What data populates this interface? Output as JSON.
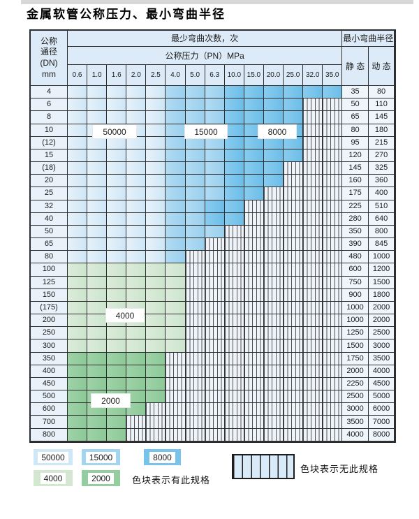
{
  "title": "金属软管公称压力、最小弯曲半径",
  "table": {
    "corner_lines": [
      "公称",
      "通径",
      "(DN)",
      "mm"
    ],
    "bend_cycles_header": "最少弯曲次数，次",
    "pressure_header": "公称压力（PN）MPa",
    "radius_header": "最小弯曲半径",
    "static_label": "静 态",
    "dynamic_label": "动 态",
    "pressures": [
      "0.6",
      "1.0",
      "1.6",
      "2.0",
      "2.5",
      "4.0",
      "5.0",
      "6.3",
      "10.0",
      "15.0",
      "20.0",
      "25.0",
      "32.0",
      "35.0"
    ],
    "rows": [
      {
        "dn": "4",
        "static": "35",
        "dynamic": "80",
        "cells": [
          "b1",
          "b1",
          "b1",
          "b1",
          "b1",
          "b2",
          "b2",
          "b2",
          "b3",
          "b3",
          "b3",
          "b3",
          "b3",
          "b3"
        ]
      },
      {
        "dn": "6",
        "static": "50",
        "dynamic": "110",
        "cells": [
          "b1",
          "b1",
          "b1",
          "b1",
          "b1",
          "b2",
          "b2",
          "b2",
          "b3",
          "b3",
          "b3",
          "b3",
          "x",
          "x"
        ]
      },
      {
        "dn": "8",
        "static": "65",
        "dynamic": "145",
        "cells": [
          "b1",
          "b1",
          "b1",
          "b1",
          "b1",
          "b2",
          "b2",
          "b2",
          "b3",
          "b3",
          "b3",
          "b3",
          "x",
          "x"
        ]
      },
      {
        "dn": "10",
        "static": "80",
        "dynamic": "180",
        "cells": [
          "b1",
          "b1",
          "b1",
          "b1",
          "b1",
          "b2",
          "b2",
          "b2",
          "b3",
          "b3",
          "b3",
          "b3",
          "x",
          "x"
        ]
      },
      {
        "dn": "(12)",
        "static": "95",
        "dynamic": "215",
        "cells": [
          "b1",
          "b1",
          "b1",
          "b1",
          "b1",
          "b2",
          "b2",
          "b2",
          "b3",
          "b3",
          "b3",
          "b3",
          "x",
          "x"
        ]
      },
      {
        "dn": "15",
        "static": "120",
        "dynamic": "270",
        "cells": [
          "b1",
          "b1",
          "b1",
          "b1",
          "b1",
          "b2",
          "b2",
          "b2",
          "b3",
          "b3",
          "b3",
          "b3",
          "x",
          "x"
        ]
      },
      {
        "dn": "(18)",
        "static": "145",
        "dynamic": "325",
        "cells": [
          "b1",
          "b1",
          "b1",
          "b1",
          "b1",
          "b2",
          "b2",
          "b2",
          "b3",
          "b3",
          "b3",
          "x",
          "x",
          "x"
        ]
      },
      {
        "dn": "20",
        "static": "160",
        "dynamic": "360",
        "cells": [
          "b1",
          "b1",
          "b1",
          "b1",
          "b1",
          "b2",
          "b2",
          "b2",
          "b3",
          "b3",
          "b3",
          "x",
          "x",
          "x"
        ]
      },
      {
        "dn": "25",
        "static": "175",
        "dynamic": "400",
        "cells": [
          "b1",
          "b1",
          "b1",
          "b1",
          "b1",
          "b2",
          "b2",
          "b2",
          "b3",
          "b3",
          "x",
          "x",
          "x",
          "x"
        ]
      },
      {
        "dn": "32",
        "static": "225",
        "dynamic": "510",
        "cells": [
          "b1",
          "b1",
          "b1",
          "b1",
          "b1",
          "b2",
          "b2",
          "b3",
          "b3",
          "x",
          "x",
          "x",
          "x",
          "x"
        ]
      },
      {
        "dn": "40",
        "static": "280",
        "dynamic": "640",
        "cells": [
          "b1",
          "b1",
          "b1",
          "b1",
          "b1",
          "b2",
          "b2",
          "b3",
          "b3",
          "x",
          "x",
          "x",
          "x",
          "x"
        ]
      },
      {
        "dn": "50",
        "static": "350",
        "dynamic": "800",
        "cells": [
          "b1",
          "b1",
          "b1",
          "b1",
          "b1",
          "b2",
          "b2",
          "b2",
          "x",
          "x",
          "x",
          "x",
          "x",
          "x"
        ]
      },
      {
        "dn": "65",
        "static": "390",
        "dynamic": "845",
        "cells": [
          "b1",
          "b1",
          "b1",
          "b1",
          "b1",
          "b2",
          "b2",
          "x",
          "x",
          "x",
          "x",
          "x",
          "x",
          "x"
        ]
      },
      {
        "dn": "80",
        "static": "480",
        "dynamic": "1000",
        "cells": [
          "b1",
          "b1",
          "b1",
          "b1",
          "b1",
          "b2",
          "x",
          "x",
          "x",
          "x",
          "x",
          "x",
          "x",
          "x"
        ]
      },
      {
        "dn": "100",
        "static": "600",
        "dynamic": "1200",
        "cells": [
          "g1",
          "g1",
          "g1",
          "g1",
          "g1",
          "g1",
          "x",
          "x",
          "x",
          "x",
          "x",
          "x",
          "x",
          "x"
        ]
      },
      {
        "dn": "125",
        "static": "750",
        "dynamic": "1500",
        "cells": [
          "g1",
          "g1",
          "g1",
          "g1",
          "g1",
          "g1",
          "x",
          "x",
          "x",
          "x",
          "x",
          "x",
          "x",
          "x"
        ]
      },
      {
        "dn": "150",
        "static": "900",
        "dynamic": "1800",
        "cells": [
          "g1",
          "g1",
          "g1",
          "g1",
          "g1",
          "g1",
          "x",
          "x",
          "x",
          "x",
          "x",
          "x",
          "x",
          "x"
        ]
      },
      {
        "dn": "(175)",
        "static": "1000",
        "dynamic": "2000",
        "cells": [
          "g1",
          "g1",
          "g1",
          "g1",
          "g1",
          "g1",
          "x",
          "x",
          "x",
          "x",
          "x",
          "x",
          "x",
          "x"
        ]
      },
      {
        "dn": "200",
        "static": "1000",
        "dynamic": "2000",
        "cells": [
          "g1",
          "g1",
          "g1",
          "g1",
          "g1",
          "g1",
          "x",
          "x",
          "x",
          "x",
          "x",
          "x",
          "x",
          "x"
        ]
      },
      {
        "dn": "250",
        "static": "1250",
        "dynamic": "2500",
        "cells": [
          "g1",
          "g1",
          "g1",
          "g1",
          "g1",
          "g1",
          "x",
          "x",
          "x",
          "x",
          "x",
          "x",
          "x",
          "x"
        ]
      },
      {
        "dn": "300",
        "static": "1500",
        "dynamic": "3000",
        "cells": [
          "g1",
          "g1",
          "g1",
          "g1",
          "g1",
          "g1",
          "x",
          "x",
          "x",
          "x",
          "x",
          "x",
          "x",
          "x"
        ]
      },
      {
        "dn": "350",
        "static": "1750",
        "dynamic": "3500",
        "cells": [
          "g2",
          "g2",
          "g2",
          "g2",
          "g2",
          "x",
          "x",
          "x",
          "x",
          "x",
          "x",
          "x",
          "x",
          "x"
        ]
      },
      {
        "dn": "400",
        "static": "2000",
        "dynamic": "4000",
        "cells": [
          "g2",
          "g2",
          "g2",
          "g2",
          "g2",
          "x",
          "x",
          "x",
          "x",
          "x",
          "x",
          "x",
          "x",
          "x"
        ]
      },
      {
        "dn": "450",
        "static": "2250",
        "dynamic": "4500",
        "cells": [
          "g2",
          "g2",
          "g2",
          "g2",
          "g2",
          "x",
          "x",
          "x",
          "x",
          "x",
          "x",
          "x",
          "x",
          "x"
        ]
      },
      {
        "dn": "500",
        "static": "2500",
        "dynamic": "5000",
        "cells": [
          "g2",
          "g2",
          "g2",
          "g2",
          "g2",
          "x",
          "x",
          "x",
          "x",
          "x",
          "x",
          "x",
          "x",
          "x"
        ]
      },
      {
        "dn": "600",
        "static": "3000",
        "dynamic": "6000",
        "cells": [
          "g2",
          "g2",
          "g2",
          "g2",
          "x",
          "x",
          "x",
          "x",
          "x",
          "x",
          "x",
          "x",
          "x",
          "x"
        ]
      },
      {
        "dn": "700",
        "static": "3500",
        "dynamic": "7000",
        "cells": [
          "g2",
          "g2",
          "g2",
          "x",
          "x",
          "x",
          "x",
          "x",
          "x",
          "x",
          "x",
          "x",
          "x",
          "x"
        ]
      },
      {
        "dn": "800",
        "static": "4000",
        "dynamic": "8000",
        "cells": [
          "g2",
          "g2",
          "g2",
          "x",
          "x",
          "x",
          "x",
          "x",
          "x",
          "x",
          "x",
          "x",
          "x",
          "x"
        ]
      }
    ]
  },
  "overlays": [
    {
      "text": "50000"
    },
    {
      "text": "15000"
    },
    {
      "text": "8000"
    },
    {
      "text": "4000"
    },
    {
      "text": "2000"
    }
  ],
  "legend": {
    "chips": [
      {
        "label": "50000",
        "color": "#cfe8f8"
      },
      {
        "label": "15000",
        "color": "#a3d5f0"
      },
      {
        "label": "8000",
        "color": "#77c3ea"
      },
      {
        "label": "4000",
        "color": "#d3e7d1"
      },
      {
        "label": "2000",
        "color": "#94cd9f"
      }
    ],
    "has_spec_text": "色块表示有此规格",
    "no_spec_text": "色块表示无此规格"
  },
  "colors": {
    "blue_50000": [
      "#e6f2fb",
      "#cfe6f6"
    ],
    "blue_15000": [
      "#b2dbf3",
      "#99d0ee"
    ],
    "blue_8000": [
      "#8accee",
      "#6cbde8"
    ],
    "green_4000": [
      "#dcecda",
      "#cce4cc"
    ],
    "green_2000": [
      "#9ed3a7",
      "#8cc898"
    ],
    "stripe_bg": "#eef4fa",
    "stripe_line": "#4f4f4f",
    "legend_stripe_fill": "#d9ebf9",
    "header_bg": "#dcebf7",
    "dn_bg": "#e9f2fa",
    "value_bg": "#eef5fb",
    "border": "#2e2e2e"
  }
}
